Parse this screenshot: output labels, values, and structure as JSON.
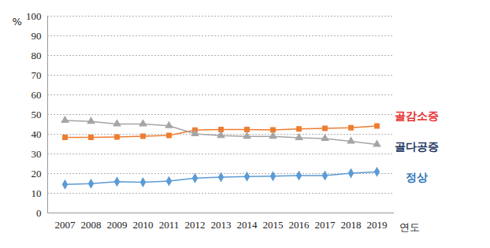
{
  "chart_data": {
    "type": "line",
    "x_label": "연도",
    "y_label": "%",
    "categories": [
      "2007",
      "2008",
      "2009",
      "2010",
      "2011",
      "2012",
      "2013",
      "2014",
      "2015",
      "2016",
      "2017",
      "2018",
      "2019"
    ],
    "ylim": [
      0,
      100
    ],
    "yticks": [
      0,
      10,
      20,
      30,
      40,
      50,
      60,
      70,
      80,
      90,
      100
    ],
    "grid": true,
    "legend": "right",
    "series": [
      {
        "name": "골감소증",
        "color": "#ed7d31",
        "marker": "square",
        "values": [
          38.4,
          38.4,
          38.6,
          39.0,
          39.4,
          42.1,
          42.4,
          42.4,
          42.2,
          42.7,
          43.0,
          43.3,
          44.2
        ]
      },
      {
        "name": "골다공증",
        "color": "#a5a5a5",
        "marker": "triangle",
        "values": [
          47.0,
          46.5,
          45.2,
          45.2,
          44.3,
          40.2,
          39.3,
          38.9,
          38.9,
          38.2,
          37.8,
          36.4,
          34.8
        ]
      },
      {
        "name": "정상",
        "color": "#5b9bd5",
        "marker": "diamond",
        "values": [
          14.5,
          14.9,
          15.9,
          15.6,
          16.2,
          17.7,
          18.2,
          18.5,
          18.7,
          19.0,
          19.0,
          20.2,
          20.9
        ]
      }
    ]
  }
}
